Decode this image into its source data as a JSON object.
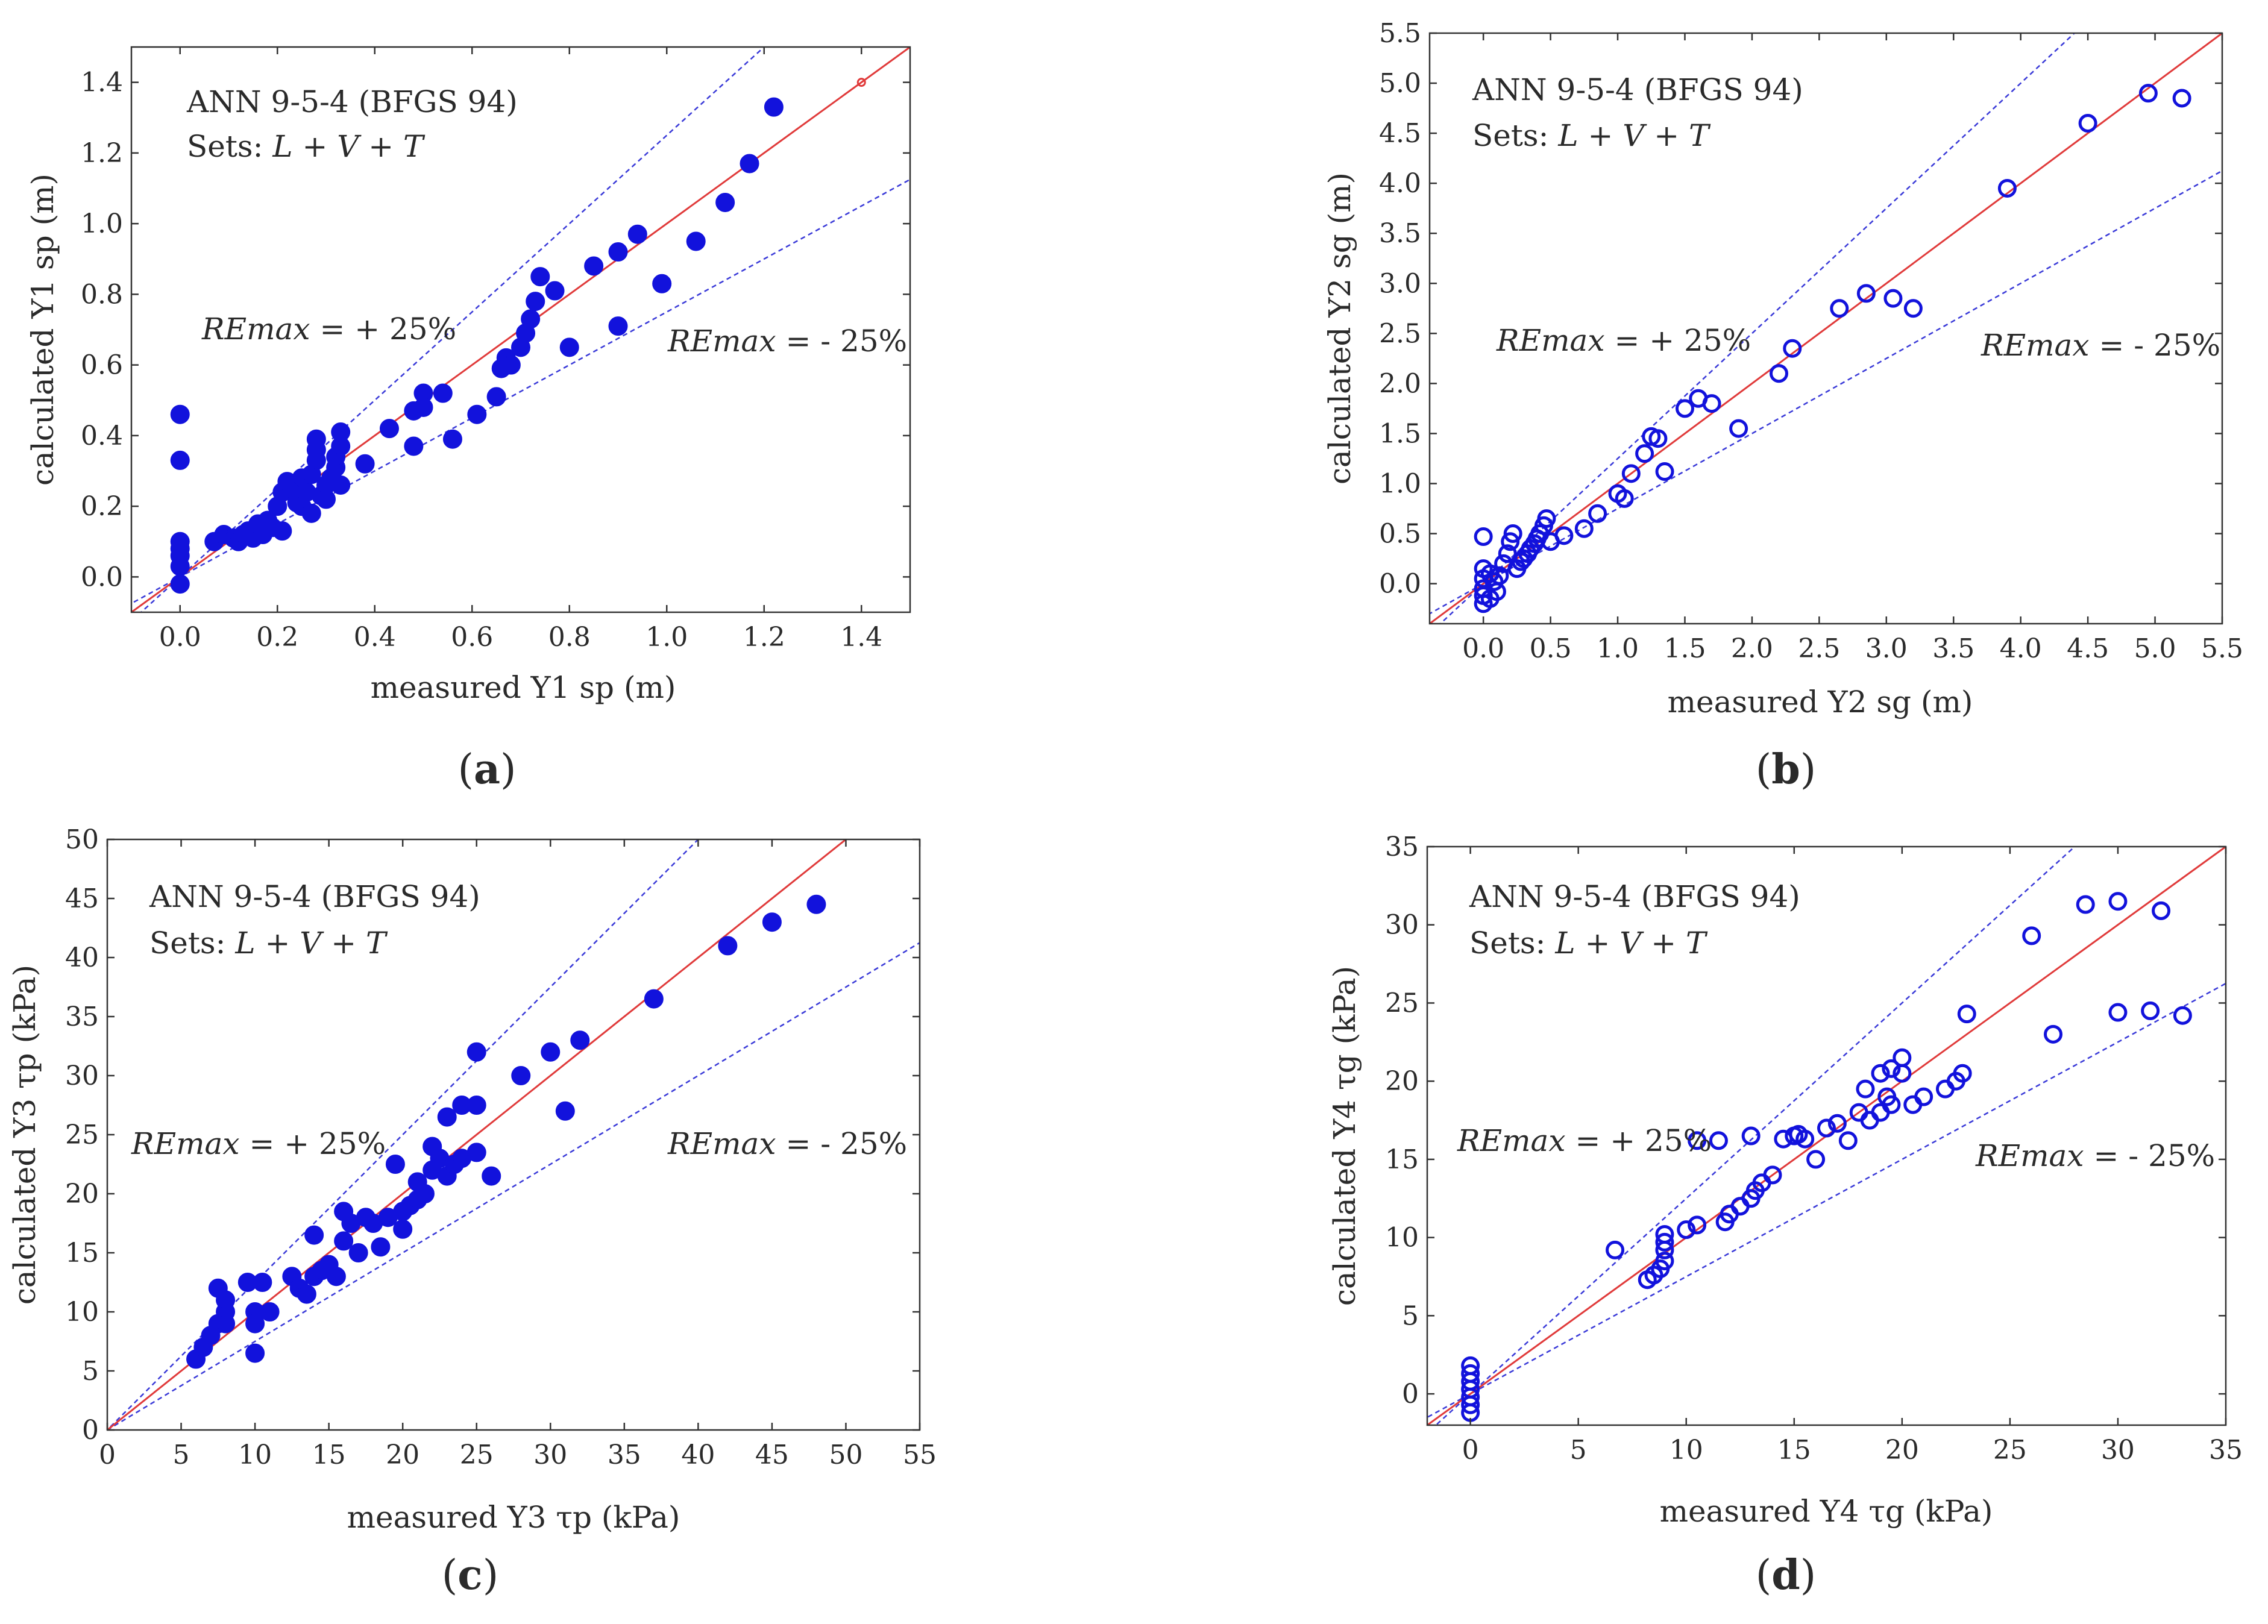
{
  "figure": {
    "common": {
      "model": "ANN 9-5-4 (BFGS 94)",
      "sets_prefix": "Sets: ",
      "sets_value": "L + V + T",
      "re_plus_prefix": "REmax",
      "re_plus_suffix": " = + 25%",
      "re_minus_prefix": "REmax",
      "re_minus_suffix": " = - 25%"
    },
    "colors": {
      "points": "#1212dc",
      "ideal_line": "#e03a3a",
      "bound_lines": "#3a3ad8"
    }
  },
  "chart_data": [
    {
      "id": "a",
      "panel_label": "a",
      "type": "scatter",
      "marker": "filled",
      "xlabel": "measured Y1 sp (m)",
      "ylabel": "calculated Y1 sp (m)",
      "xlim": [
        -0.1,
        1.5
      ],
      "ylim": [
        -0.1,
        1.5
      ],
      "xticks": [
        "0.0",
        "0.2",
        "0.4",
        "0.6",
        "0.8",
        "1.0",
        "1.2",
        "1.4"
      ],
      "yticks": [
        "0.0",
        "0.2",
        "0.4",
        "0.6",
        "0.8",
        "1.0",
        "1.2",
        "1.4"
      ],
      "lines": {
        "ideal_slope": 1.0,
        "upper_slope": 1.25,
        "lower_slope": 0.75
      },
      "points": [
        [
          0,
          0.46
        ],
        [
          0,
          0.33
        ],
        [
          0,
          0.1
        ],
        [
          0,
          0.08
        ],
        [
          0,
          0.06
        ],
        [
          0,
          0.03
        ],
        [
          0,
          -0.02
        ],
        [
          0.07,
          0.1
        ],
        [
          0.09,
          0.12
        ],
        [
          0.11,
          0.11
        ],
        [
          0.12,
          0.1
        ],
        [
          0.13,
          0.12
        ],
        [
          0.14,
          0.13
        ],
        [
          0.15,
          0.11
        ],
        [
          0.16,
          0.15
        ],
        [
          0.17,
          0.12
        ],
        [
          0.18,
          0.16
        ],
        [
          0.19,
          0.14
        ],
        [
          0.2,
          0.2
        ],
        [
          0.21,
          0.13
        ],
        [
          0.21,
          0.24
        ],
        [
          0.22,
          0.27
        ],
        [
          0.23,
          0.25
        ],
        [
          0.24,
          0.21
        ],
        [
          0.25,
          0.28
        ],
        [
          0.25,
          0.2
        ],
        [
          0.26,
          0.24
        ],
        [
          0.27,
          0.18
        ],
        [
          0.27,
          0.29
        ],
        [
          0.28,
          0.33
        ],
        [
          0.28,
          0.36
        ],
        [
          0.28,
          0.39
        ],
        [
          0.29,
          0.23
        ],
        [
          0.3,
          0.26
        ],
        [
          0.3,
          0.22
        ],
        [
          0.31,
          0.28
        ],
        [
          0.32,
          0.31
        ],
        [
          0.32,
          0.34
        ],
        [
          0.33,
          0.37
        ],
        [
          0.33,
          0.41
        ],
        [
          0.33,
          0.26
        ],
        [
          0.38,
          0.32
        ],
        [
          0.43,
          0.42
        ],
        [
          0.48,
          0.47
        ],
        [
          0.48,
          0.37
        ],
        [
          0.5,
          0.52
        ],
        [
          0.5,
          0.48
        ],
        [
          0.54,
          0.52
        ],
        [
          0.56,
          0.39
        ],
        [
          0.61,
          0.46
        ],
        [
          0.65,
          0.51
        ],
        [
          0.66,
          0.59
        ],
        [
          0.67,
          0.62
        ],
        [
          0.68,
          0.6
        ],
        [
          0.7,
          0.65
        ],
        [
          0.71,
          0.69
        ],
        [
          0.72,
          0.73
        ],
        [
          0.73,
          0.78
        ],
        [
          0.74,
          0.85
        ],
        [
          0.77,
          0.81
        ],
        [
          0.8,
          0.65
        ],
        [
          0.85,
          0.88
        ],
        [
          0.9,
          0.92
        ],
        [
          0.9,
          0.71
        ],
        [
          0.94,
          0.97
        ],
        [
          0.99,
          0.83
        ],
        [
          1.06,
          0.95
        ],
        [
          1.12,
          1.06
        ],
        [
          1.17,
          1.17
        ],
        [
          1.22,
          1.33
        ]
      ]
    },
    {
      "id": "b",
      "panel_label": "b",
      "type": "scatter",
      "marker": "open",
      "xlabel": "measured Y2 sg (m)",
      "ylabel": "calculated Y2 sg (m)",
      "xlim": [
        -0.4,
        5.5
      ],
      "ylim": [
        -0.4,
        5.5
      ],
      "xticks": [
        "0.0",
        "0.5",
        "1.0",
        "1.5",
        "2.0",
        "2.5",
        "3.0",
        "3.5",
        "4.0",
        "4.5",
        "5.0",
        "5.5"
      ],
      "yticks": [
        "0.0",
        "0.5",
        "1.0",
        "1.5",
        "2.0",
        "2.5",
        "3.0",
        "3.5",
        "4.0",
        "4.5",
        "5.0",
        "5.5"
      ],
      "lines": {
        "ideal_slope": 1.0,
        "upper_slope": 1.25,
        "lower_slope": 0.75
      },
      "points": [
        [
          0,
          0.47
        ],
        [
          0,
          0.15
        ],
        [
          0,
          0.05
        ],
        [
          0,
          -0.05
        ],
        [
          0,
          -0.12
        ],
        [
          0,
          -0.2
        ],
        [
          0.05,
          -0.15
        ],
        [
          0.05,
          0.1
        ],
        [
          0.08,
          0.02
        ],
        [
          0.1,
          -0.08
        ],
        [
          0.12,
          0.08
        ],
        [
          0.15,
          0.2
        ],
        [
          0.18,
          0.3
        ],
        [
          0.2,
          0.42
        ],
        [
          0.22,
          0.5
        ],
        [
          0.25,
          0.15
        ],
        [
          0.28,
          0.22
        ],
        [
          0.3,
          0.25
        ],
        [
          0.33,
          0.3
        ],
        [
          0.35,
          0.35
        ],
        [
          0.38,
          0.4
        ],
        [
          0.4,
          0.45
        ],
        [
          0.42,
          0.5
        ],
        [
          0.45,
          0.58
        ],
        [
          0.47,
          0.65
        ],
        [
          0.5,
          0.42
        ],
        [
          0.6,
          0.48
        ],
        [
          0.75,
          0.55
        ],
        [
          0.85,
          0.7
        ],
        [
          1.0,
          0.9
        ],
        [
          1.05,
          0.85
        ],
        [
          1.1,
          1.1
        ],
        [
          1.2,
          1.3
        ],
        [
          1.25,
          1.47
        ],
        [
          1.3,
          1.45
        ],
        [
          1.35,
          1.12
        ],
        [
          1.5,
          1.75
        ],
        [
          1.6,
          1.85
        ],
        [
          1.7,
          1.8
        ],
        [
          1.9,
          1.55
        ],
        [
          2.2,
          2.1
        ],
        [
          2.3,
          2.35
        ],
        [
          2.65,
          2.75
        ],
        [
          2.85,
          2.9
        ],
        [
          3.05,
          2.85
        ],
        [
          3.2,
          2.75
        ],
        [
          3.9,
          3.95
        ],
        [
          4.5,
          4.6
        ],
        [
          4.95,
          4.9
        ],
        [
          5.2,
          4.85
        ]
      ]
    },
    {
      "id": "c",
      "panel_label": "c",
      "type": "scatter",
      "marker": "filled",
      "xlabel": "measured Y3 τp (kPa)",
      "ylabel": "calculated Y3 τp (kPa)",
      "xlim": [
        0,
        55
      ],
      "ylim": [
        0,
        50
      ],
      "xticks": [
        "0",
        "5",
        "10",
        "15",
        "20",
        "25",
        "30",
        "35",
        "40",
        "45",
        "50",
        "55"
      ],
      "yticks": [
        "0",
        "5",
        "10",
        "15",
        "20",
        "25",
        "30",
        "35",
        "40",
        "45",
        "50"
      ],
      "lines": {
        "ideal_slope": 1.0,
        "upper_slope": 1.25,
        "lower_slope": 0.75
      },
      "points": [
        [
          6,
          6
        ],
        [
          6.5,
          7
        ],
        [
          7,
          8
        ],
        [
          7.5,
          9
        ],
        [
          7.5,
          12
        ],
        [
          8,
          10
        ],
        [
          8,
          11
        ],
        [
          8,
          9
        ],
        [
          9.5,
          12.5
        ],
        [
          10,
          10
        ],
        [
          10,
          9
        ],
        [
          10,
          6.5
        ],
        [
          10.5,
          12.5
        ],
        [
          11,
          10
        ],
        [
          12.5,
          13
        ],
        [
          13,
          12
        ],
        [
          13.5,
          11.5
        ],
        [
          14,
          13
        ],
        [
          14,
          16.5
        ],
        [
          14.5,
          13.5
        ],
        [
          15,
          14
        ],
        [
          15.5,
          13
        ],
        [
          16,
          18.5
        ],
        [
          16,
          16
        ],
        [
          16.5,
          17.5
        ],
        [
          17,
          15
        ],
        [
          17.5,
          18
        ],
        [
          18,
          17.5
        ],
        [
          18.5,
          15.5
        ],
        [
          19,
          18
        ],
        [
          19.5,
          22.5
        ],
        [
          20,
          17
        ],
        [
          20,
          18.5
        ],
        [
          20.5,
          19
        ],
        [
          21,
          21
        ],
        [
          21,
          19.5
        ],
        [
          21.5,
          20
        ],
        [
          22,
          24
        ],
        [
          22,
          22
        ],
        [
          22.5,
          23
        ],
        [
          23,
          26.5
        ],
        [
          23,
          21.5
        ],
        [
          23.5,
          22.5
        ],
        [
          24,
          27.5
        ],
        [
          24,
          23
        ],
        [
          25,
          27.5
        ],
        [
          25,
          23.5
        ],
        [
          25,
          32
        ],
        [
          26,
          21.5
        ],
        [
          28,
          30
        ],
        [
          30,
          32
        ],
        [
          31,
          27
        ],
        [
          32,
          33
        ],
        [
          37,
          36.5
        ],
        [
          42,
          41
        ],
        [
          45,
          43
        ],
        [
          48,
          44.5
        ]
      ]
    },
    {
      "id": "d",
      "panel_label": "d",
      "type": "scatter",
      "marker": "open",
      "xlabel": "measured Y4 τg (kPa)",
      "ylabel": "calculated Y4 τg (kPa)",
      "xlim": [
        -2,
        35
      ],
      "ylim": [
        -2,
        35
      ],
      "xticks": [
        "0",
        "5",
        "10",
        "15",
        "20",
        "25",
        "30",
        "35"
      ],
      "yticks": [
        "0",
        "5",
        "10",
        "15",
        "20",
        "25",
        "30",
        "35"
      ],
      "lines": {
        "ideal_slope": 1.0,
        "upper_slope": 1.25,
        "lower_slope": 0.75
      },
      "points": [
        [
          0,
          1.8
        ],
        [
          0,
          1.3
        ],
        [
          0,
          0.8
        ],
        [
          0,
          0.3
        ],
        [
          0,
          -0.2
        ],
        [
          0,
          -0.7
        ],
        [
          0,
          -1.2
        ],
        [
          6.7,
          9.2
        ],
        [
          8.2,
          7.3
        ],
        [
          8.5,
          7.6
        ],
        [
          8.8,
          8
        ],
        [
          9,
          8.5
        ],
        [
          9,
          9.2
        ],
        [
          9,
          9.7
        ],
        [
          9,
          10.2
        ],
        [
          10,
          10.5
        ],
        [
          10.5,
          10.8
        ],
        [
          10.5,
          16.2
        ],
        [
          11.5,
          16.2
        ],
        [
          11.8,
          11
        ],
        [
          12,
          11.5
        ],
        [
          12.5,
          12
        ],
        [
          13,
          12.5
        ],
        [
          13.2,
          13
        ],
        [
          13,
          16.5
        ],
        [
          13.5,
          13.5
        ],
        [
          14,
          14
        ],
        [
          14.5,
          16.3
        ],
        [
          15,
          16.5
        ],
        [
          15.2,
          16.6
        ],
        [
          15.5,
          16.3
        ],
        [
          16,
          15
        ],
        [
          16.5,
          17
        ],
        [
          17,
          17.3
        ],
        [
          17.5,
          16.2
        ],
        [
          18,
          18
        ],
        [
          18.3,
          19.5
        ],
        [
          18.5,
          17.5
        ],
        [
          19,
          18
        ],
        [
          19,
          20.5
        ],
        [
          19.3,
          19
        ],
        [
          19.5,
          18.5
        ],
        [
          19.5,
          20.8
        ],
        [
          20,
          21.5
        ],
        [
          20,
          20.5
        ],
        [
          20.5,
          18.5
        ],
        [
          21,
          19
        ],
        [
          22,
          19.5
        ],
        [
          22.5,
          20
        ],
        [
          22.8,
          20.5
        ],
        [
          23,
          24.3
        ],
        [
          26,
          29.3
        ],
        [
          27,
          23
        ],
        [
          28.5,
          31.3
        ],
        [
          30,
          31.5
        ],
        [
          30,
          24.4
        ],
        [
          31.5,
          24.5
        ],
        [
          32,
          30.9
        ],
        [
          33,
          24.2
        ]
      ]
    }
  ]
}
